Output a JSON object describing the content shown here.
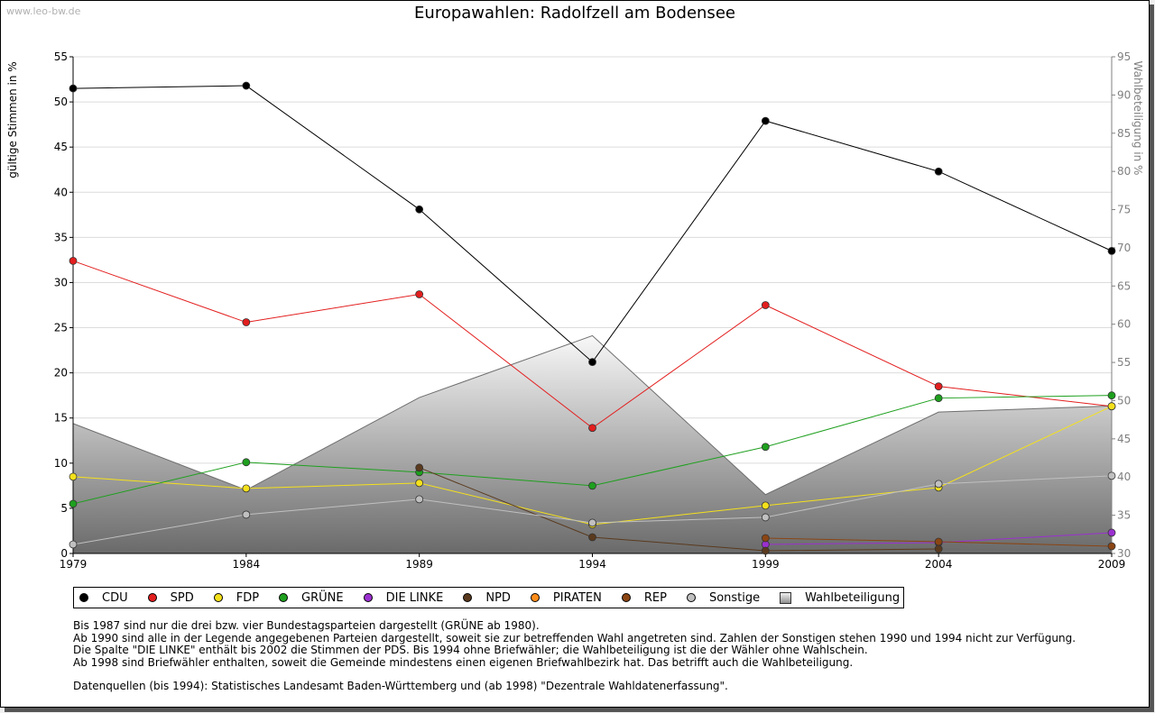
{
  "watermark": "www.leo-bw.de",
  "chart_data": {
    "type": "line",
    "title": "Europawahlen: Radolfzell am Bodensee",
    "xlabel": "",
    "ylabel": "gültige Stimmen in %",
    "y2label": "Wahlbeteiligung in %",
    "categories": [
      "1979",
      "1984",
      "1989",
      "1994",
      "1999",
      "2004",
      "2009"
    ],
    "ylim": [
      0,
      55
    ],
    "yticks": [
      0,
      5,
      10,
      15,
      20,
      25,
      30,
      35,
      40,
      45,
      50,
      55
    ],
    "y2lim": [
      30,
      95
    ],
    "y2ticks": [
      30,
      35,
      40,
      45,
      50,
      55,
      60,
      65,
      70,
      75,
      80,
      85,
      90,
      95
    ],
    "grid": true,
    "series": [
      {
        "name": "CDU",
        "color": "#000000",
        "values": [
          51.5,
          51.8,
          38.1,
          21.2,
          47.9,
          42.3,
          33.5
        ]
      },
      {
        "name": "SPD",
        "color": "#e31e1e",
        "values": [
          32.4,
          25.6,
          28.7,
          13.9,
          27.5,
          18.5,
          16.3
        ]
      },
      {
        "name": "FDP",
        "color": "#f5e11b",
        "values": [
          8.5,
          7.2,
          7.8,
          3.2,
          5.3,
          7.3,
          16.3
        ]
      },
      {
        "name": "GRÜNE",
        "color": "#1ea01e",
        "values": [
          5.5,
          10.1,
          9.0,
          7.5,
          11.8,
          17.2,
          17.5
        ]
      },
      {
        "name": "DIE LINKE",
        "color": "#9b30d0",
        "values": [
          null,
          null,
          null,
          null,
          1.0,
          1.2,
          2.3
        ]
      },
      {
        "name": "NPD",
        "color": "#5a3a1e",
        "values": [
          null,
          null,
          9.5,
          1.8,
          0.3,
          0.5,
          null
        ]
      },
      {
        "name": "PIRATEN",
        "color": "#ff8c1a",
        "values": [
          null,
          null,
          null,
          null,
          null,
          null,
          null
        ]
      },
      {
        "name": "REP",
        "color": "#8b4513",
        "values": [
          null,
          null,
          null,
          null,
          1.7,
          1.3,
          0.8
        ]
      },
      {
        "name": "Sonstige",
        "color": "#c0c0c0",
        "values": [
          1.0,
          4.3,
          6.0,
          3.4,
          4.0,
          7.7,
          8.6
        ]
      }
    ],
    "turnout": {
      "name": "Wahlbeteiligung",
      "values": [
        47.0,
        38.3,
        50.4,
        58.5,
        37.7,
        48.5,
        49.3
      ]
    },
    "legend": [
      "CDU",
      "SPD",
      "FDP",
      "GRÜNE",
      "DIE LINKE",
      "NPD",
      "PIRATEN",
      "REP",
      "Sonstige",
      "Wahlbeteiligung"
    ],
    "legend_position": "bottom-left"
  },
  "notes": [
    "Bis 1987 sind nur die drei bzw. vier Bundestagsparteien dargestellt (GRÜNE ab 1980).",
    "Ab 1990 sind alle in der Legende angegebenen Parteien dargestellt, soweit sie zur betreffenden Wahl angetreten sind. Zahlen der Sonstigen stehen 1990 und 1994 nicht zur Verfügung.",
    "Die Spalte \"DIE LINKE\" enthält bis 2002 die Stimmen der PDS. Bis 1994 ohne Briefwähler; die Wahlbeteiligung ist die der Wähler ohne Wahlschein.",
    "Ab 1998 sind Briefwähler enthalten, soweit die Gemeinde mindestens einen eigenen Briefwahlbezirk hat. Das betrifft auch die Wahlbeteiligung."
  ],
  "sources": "Datenquellen (bis 1994): Statistisches Landesamt Baden-Württemberg und (ab 1998) \"Dezentrale Wahldatenerfassung\"."
}
